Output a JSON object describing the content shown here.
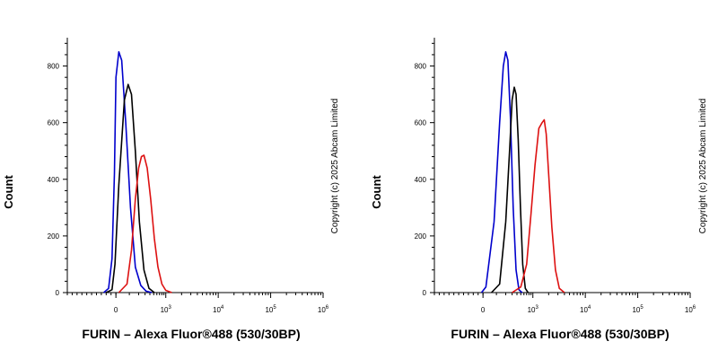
{
  "chart_data": [
    {
      "type": "line",
      "title": "",
      "xlabel": "FURIN – Alexa Fluor®488 (530/30BP)",
      "ylabel": "Count",
      "xscale": "biexponential",
      "xlim": [
        -1000,
        1000000
      ],
      "ylim": [
        0,
        900
      ],
      "yticks": [
        0,
        200,
        400,
        600,
        800
      ],
      "xticks": [
        {
          "label": "0",
          "value": 0
        },
        {
          "base": "10",
          "exp": "3",
          "value": 1000
        },
        {
          "base": "10",
          "exp": "4",
          "value": 10000
        },
        {
          "base": "10",
          "exp": "5",
          "value": 100000
        },
        {
          "base": "10",
          "exp": "6",
          "value": 1000000
        }
      ],
      "copyright": "Copyright (c) 2025 Abcam Limited",
      "series": [
        {
          "color": "#0000cc",
          "x": [
            -250,
            -150,
            -80,
            -30,
            0,
            20,
            40,
            70,
            110,
            160,
            230,
            320,
            450
          ],
          "y": [
            0,
            15,
            120,
            420,
            760,
            850,
            820,
            600,
            300,
            90,
            25,
            5,
            0
          ]
        },
        {
          "color": "#000000",
          "x": [
            -200,
            -80,
            -20,
            20,
            60,
            90,
            120,
            160,
            210,
            280,
            380,
            520
          ],
          "y": [
            0,
            10,
            100,
            380,
            680,
            735,
            700,
            500,
            250,
            80,
            15,
            0
          ]
        },
        {
          "color": "#dd1111",
          "x": [
            20,
            80,
            120,
            160,
            200,
            240,
            280,
            340,
            420,
            520,
            640,
            800,
            1000,
            1300
          ],
          "y": [
            0,
            30,
            150,
            330,
            440,
            480,
            485,
            440,
            330,
            190,
            90,
            30,
            8,
            0
          ]
        }
      ]
    },
    {
      "type": "line",
      "title": "",
      "xlabel": "FURIN – Alexa Fluor®488 (530/30BP)",
      "ylabel": "Count",
      "xscale": "biexponential",
      "xlim": [
        -1000,
        1000000
      ],
      "ylim": [
        0,
        900
      ],
      "yticks": [
        0,
        200,
        400,
        600,
        800
      ],
      "xticks": [
        {
          "label": "0",
          "value": 0
        },
        {
          "base": "10",
          "exp": "3",
          "value": 1000
        },
        {
          "base": "10",
          "exp": "4",
          "value": 10000
        },
        {
          "base": "10",
          "exp": "5",
          "value": 100000
        },
        {
          "base": "10",
          "exp": "6",
          "value": 1000000
        }
      ],
      "copyright": "Copyright (c) 2025 Abcam Limited",
      "series": [
        {
          "color": "#0000cc",
          "x": [
            -30,
            20,
            80,
            130,
            170,
            200,
            230,
            270,
            320,
            380,
            450,
            540
          ],
          "y": [
            0,
            20,
            250,
            600,
            800,
            850,
            820,
            620,
            300,
            80,
            10,
            0
          ]
        },
        {
          "color": "#000000",
          "x": [
            60,
            130,
            200,
            260,
            300,
            340,
            380,
            430,
            490,
            560,
            650,
            760
          ],
          "y": [
            0,
            30,
            250,
            520,
            680,
            725,
            700,
            540,
            300,
            100,
            15,
            0
          ]
        },
        {
          "color": "#dd1111",
          "x": [
            300,
            500,
            700,
            900,
            1100,
            1300,
            1500,
            1650,
            1800,
            2000,
            2300,
            2700,
            3200,
            4000
          ],
          "y": [
            0,
            20,
            100,
            280,
            450,
            580,
            600,
            610,
            560,
            420,
            230,
            80,
            15,
            0
          ]
        }
      ]
    }
  ]
}
